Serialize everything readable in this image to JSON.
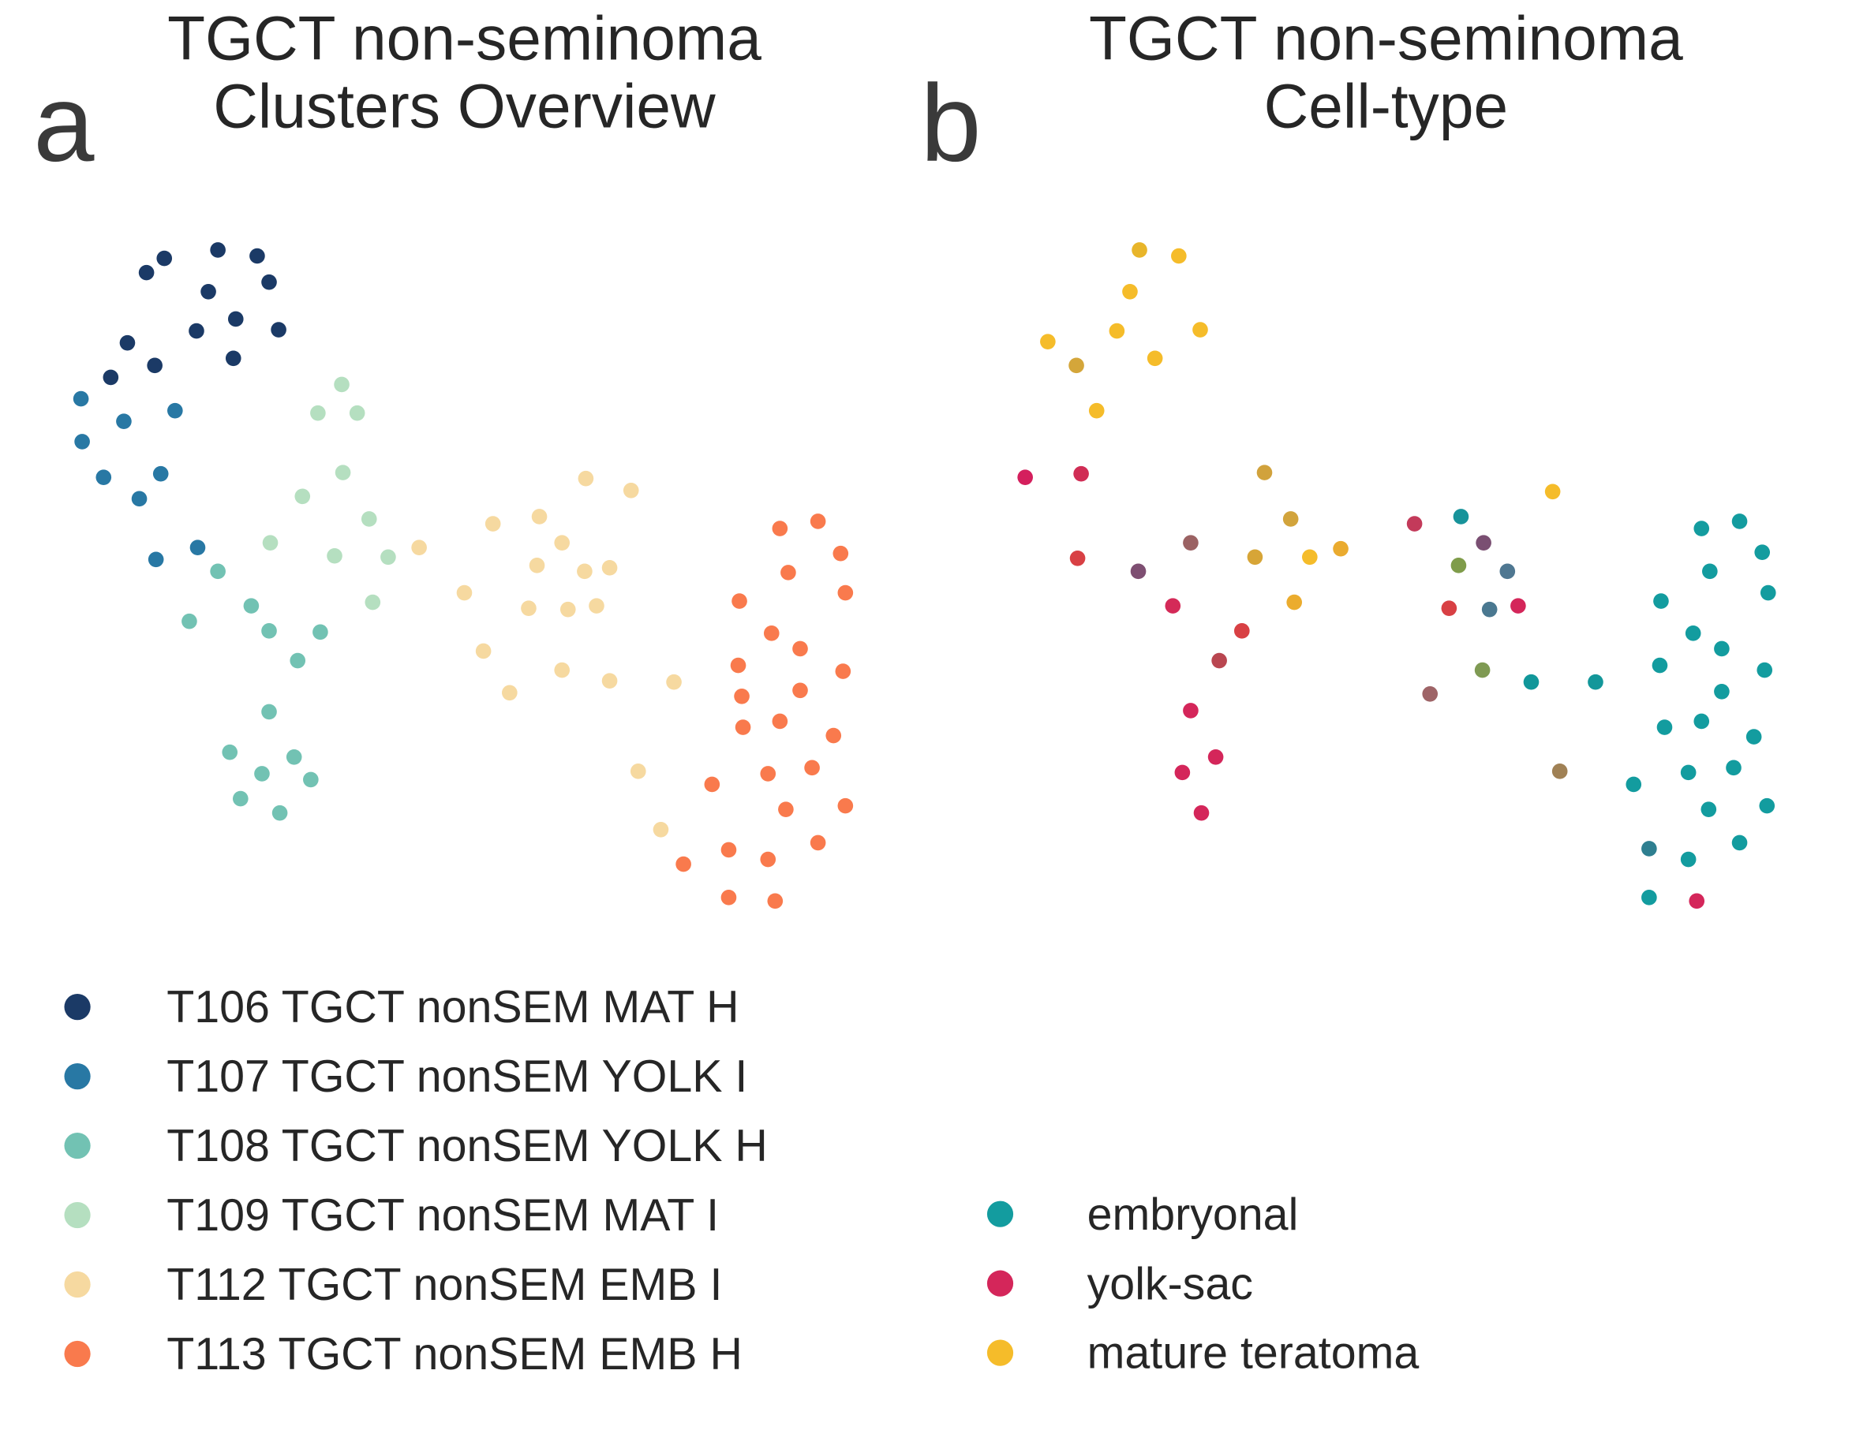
{
  "chart_data": [
    {
      "type": "scatter",
      "panel_label": "a",
      "title": [
        "TGCT non-seminoma",
        "Clusters Overview"
      ],
      "xlim": [
        40,
        740
      ],
      "ylim": [
        790,
        180
      ],
      "series": [
        {
          "name": "T106 TGCT nonSEM MAT H",
          "color": "#1b3a66",
          "x": [
            138,
            123,
            183,
            216,
            175,
            226,
            165,
            198,
            234,
            107,
            130,
            196,
            93
          ],
          "y": [
            217,
            229,
            210,
            215,
            245,
            237,
            278,
            268,
            277,
            288,
            307,
            301,
            317
          ]
        },
        {
          "name": "T107 TGCT nonSEM YOLK I",
          "color": "#2878a4",
          "x": [
            68,
            104,
            147,
            69,
            87,
            135,
            117,
            131,
            166
          ],
          "y": [
            335,
            354,
            345,
            371,
            401,
            398,
            419,
            470,
            460
          ]
        },
        {
          "name": "T108 TGCT nonSEM YOLK H",
          "color": "#72c2b3",
          "x": [
            183,
            159,
            211,
            226,
            269,
            250,
            226,
            193,
            247,
            220,
            261,
            202,
            235
          ],
          "y": [
            480,
            522,
            509,
            530,
            531,
            555,
            598,
            632,
            636,
            650,
            655,
            671,
            683
          ]
        },
        {
          "name": "T109 TGCT nonSEM MAT I",
          "color": "#b5dfc0",
          "x": [
            287,
            267,
            300,
            288,
            254,
            310,
            227,
            281,
            326,
            313
          ],
          "y": [
            323,
            347,
            347,
            397,
            417,
            436,
            456,
            467,
            468,
            506
          ]
        },
        {
          "name": "T112 TGCT nonSEM EMB I",
          "color": "#f6d9a0",
          "x": [
            492,
            530,
            414,
            453,
            472,
            352,
            451,
            491,
            512,
            390,
            444,
            477,
            501,
            406,
            472,
            512,
            566,
            428,
            536,
            555
          ],
          "y": [
            402,
            412,
            440,
            434,
            456,
            460,
            475,
            480,
            477,
            498,
            511,
            512,
            509,
            547,
            563,
            572,
            573,
            582,
            648,
            697
          ]
        },
        {
          "name": "T113 TGCT nonSEM EMB H",
          "color": "#f97a4d",
          "x": [
            655,
            687,
            706,
            662,
            710,
            621,
            648,
            672,
            620,
            708,
            672,
            623,
            655,
            700,
            624,
            682,
            645,
            598,
            660,
            710,
            687,
            612,
            645,
            574,
            612,
            651
          ],
          "y": [
            444,
            438,
            465,
            481,
            498,
            505,
            532,
            545,
            559,
            564,
            580,
            585,
            606,
            618,
            611,
            645,
            650,
            659,
            680,
            677,
            708,
            714,
            722,
            726,
            754,
            757
          ]
        }
      ]
    },
    {
      "type": "scatter",
      "panel_label": "b",
      "title": [
        "TGCT non-seminoma",
        "Cell-type"
      ],
      "xlim": [
        820,
        1520
      ],
      "ylim": [
        790,
        180
      ],
      "points": {
        "x": [
          957,
          990,
          949,
          880,
          938,
          1008,
          904,
          970,
          921,
          861,
          908,
          1062,
          1304,
          1188,
          1227,
          1084,
          1000,
          1246,
          905,
          956,
          1054,
          1100,
          1126,
          1225,
          1266,
          985,
          1043,
          1087,
          1217,
          1251,
          1275,
          1024,
          1245,
          1286,
          1340,
          1201,
          1000,
          1021,
          993,
          1310,
          1009,
          1429,
          1461,
          1480,
          1436,
          1485,
          1395,
          1422,
          1446,
          1394,
          1482,
          1446,
          1398,
          1429,
          1473,
          1372,
          1418,
          1456,
          1435,
          1484,
          1461,
          1385,
          1418,
          1385,
          1425
        ],
        "y": [
          210,
          215,
          245,
          287,
          278,
          277,
          307,
          301,
          345,
          401,
          398,
          397,
          413,
          440,
          434,
          436,
          456,
          456,
          469,
          480,
          468,
          468,
          461,
          475,
          480,
          509,
          530,
          506,
          511,
          512,
          509,
          555,
          563,
          573,
          573,
          583,
          597,
          636,
          649,
          648,
          683,
          444,
          438,
          464,
          480,
          498,
          505,
          532,
          545,
          559,
          563,
          581,
          611,
          606,
          619,
          659,
          649,
          645,
          680,
          677,
          708,
          713,
          722,
          754,
          757
        ],
        "colors": [
          "#e8b52a",
          "#f5bc2a",
          "#f5bc2a",
          "#f5bc2a",
          "#f5bc2a",
          "#f5bc2a",
          "#d4a63a",
          "#f5bc2a",
          "#f5bc2a",
          "#d41f5d",
          "#d02d55",
          "#d1a23c",
          "#f5bc2a",
          "#c33a5a",
          "#17939a",
          "#d2a43c",
          "#9b6263",
          "#7a4f72",
          "#d84044",
          "#7e4f72",
          "#d7a537",
          "#f5bc2a",
          "#eaab2f",
          "#7f9c4a",
          "#4f7791",
          "#d42a58",
          "#d84044",
          "#ebac2e",
          "#d84044",
          "#4a7890",
          "#d4265a",
          "#b94650",
          "#7f9a53",
          "#11979a",
          "#13979a",
          "#9e6467",
          "#d4265a",
          "#d4265a",
          "#d4265a",
          "#a08155",
          "#d4265a",
          "#139c9f",
          "#139c9f",
          "#139c9f",
          "#139c9f",
          "#139c9f",
          "#139c9f",
          "#139c9f",
          "#139c9f",
          "#139c9f",
          "#139c9f",
          "#139c9f",
          "#139c9f",
          "#139c9f",
          "#139c9f",
          "#139c9f",
          "#139c9f",
          "#139c9f",
          "#139c9f",
          "#139c9f",
          "#139c9f",
          "#2e7f90",
          "#139c9f",
          "#139c9f",
          "#d4265a"
        ]
      },
      "legend": [
        {
          "name": "embryonal",
          "color": "#139c9f"
        },
        {
          "name": "yolk-sac",
          "color": "#d4265a"
        },
        {
          "name": "mature teratoma",
          "color": "#f5bc2a"
        }
      ]
    }
  ]
}
